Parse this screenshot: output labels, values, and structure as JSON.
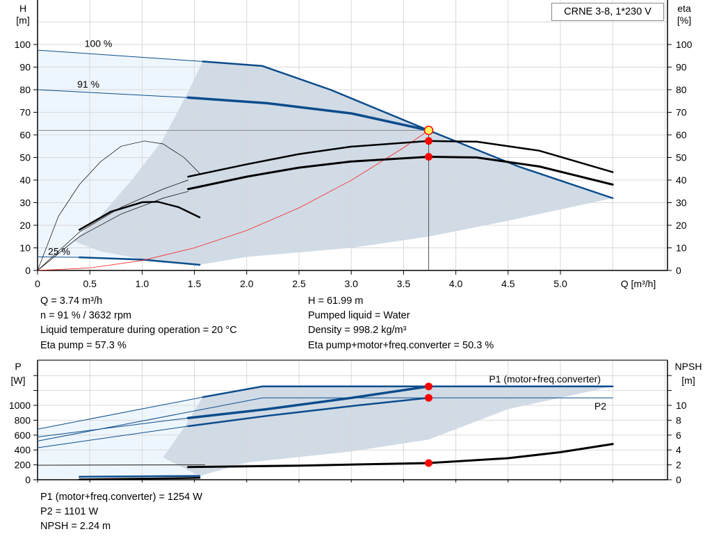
{
  "legend_box": "CRNE 3-8, 1*230 V",
  "chart_data": [
    {
      "type": "line",
      "ylabel": "H",
      "yunit": "[m]",
      "y2label": "eta",
      "y2unit": "[%]",
      "xlabel": "Q [m³/h]",
      "xlim": [
        0,
        6
      ],
      "ylim": [
        0,
        120
      ],
      "xticks": [
        "0",
        "0.5",
        "1.0",
        "1.5",
        "2.0",
        "2.5",
        "3.0",
        "3.5",
        "4.0",
        "4.5",
        "5.0"
      ],
      "yticks": [
        0,
        10,
        20,
        30,
        40,
        50,
        60,
        70,
        80,
        90,
        100
      ],
      "grid": true,
      "speed_labels": [
        {
          "text": "100 %",
          "x": 0.45,
          "y": 99
        },
        {
          "text": "91 %",
          "x": 0.38,
          "y": 81
        },
        {
          "text": "25 %",
          "x": 0.1,
          "y": 7
        }
      ],
      "series": [
        {
          "role": "head-100-thin",
          "color": "#0b4c8c",
          "width": 1,
          "points": [
            [
              0,
              97.5
            ],
            [
              1.58,
              92.5
            ]
          ]
        },
        {
          "role": "head-100",
          "color": "#0b4c8c",
          "width": 2.5,
          "points": [
            [
              1.58,
              92.5
            ],
            [
              2.15,
              90.5
            ],
            [
              2.8,
              80
            ],
            [
              3.74,
              62
            ],
            [
              4.6,
              46
            ],
            [
              5.5,
              32
            ]
          ]
        },
        {
          "role": "head-91-thin",
          "color": "#0b4c8c",
          "width": 1,
          "points": [
            [
              0,
              80
            ],
            [
              1.44,
              76.5
            ]
          ]
        },
        {
          "role": "head-91",
          "color": "#0b4c8c",
          "width": 3.5,
          "points": [
            [
              1.44,
              76.5
            ],
            [
              2.2,
              74
            ],
            [
              3.0,
              69.5
            ],
            [
              3.74,
              62
            ]
          ]
        },
        {
          "role": "head-25-thin",
          "color": "#0b4c8c",
          "width": 1,
          "points": [
            [
              0,
              6
            ],
            [
              0.4,
              5.8
            ]
          ]
        },
        {
          "role": "head-25",
          "color": "#0b4c8c",
          "width": 2.5,
          "points": [
            [
              0.4,
              5.8
            ],
            [
              1.0,
              4.8
            ],
            [
              1.55,
              2.5
            ]
          ]
        },
        {
          "role": "system-curve",
          "color": "#ff2020",
          "width": 0.8,
          "points": [
            [
              0,
              0
            ],
            [
              0.5,
              1.1
            ],
            [
              1.0,
              4.4
            ],
            [
              1.5,
              10
            ],
            [
              2.0,
              17.7
            ],
            [
              2.5,
              27.7
            ],
            [
              3.0,
              39.9
            ],
            [
              3.5,
              54.3
            ],
            [
              3.74,
              62
            ]
          ]
        },
        {
          "role": "eta-100-thin",
          "color": "#000",
          "width": 0.7,
          "points": [
            [
              0,
              0
            ],
            [
              0.2,
              24
            ],
            [
              0.4,
              38
            ],
            [
              0.6,
              48
            ],
            [
              0.8,
              55
            ],
            [
              1.02,
              57.3
            ],
            [
              1.2,
              56
            ],
            [
              1.4,
              50
            ],
            [
              1.55,
              43
            ]
          ]
        },
        {
          "role": "eta-25",
          "color": "#000",
          "width": 2.5,
          "points": [
            [
              0.4,
              18
            ],
            [
              0.7,
              26
            ],
            [
              1.0,
              30.2
            ],
            [
              1.15,
              30.4
            ],
            [
              1.35,
              28
            ],
            [
              1.55,
              23.5
            ]
          ]
        },
        {
          "role": "eta-pump-thin",
          "color": "#000",
          "width": 0.7,
          "points": [
            [
              0,
              0
            ],
            [
              0.4,
              17
            ],
            [
              0.8,
              28
            ],
            [
              1.2,
              36
            ],
            [
              1.44,
              40
            ]
          ]
        },
        {
          "role": "eta-pump",
          "color": "#000",
          "width": 2.5,
          "points": [
            [
              1.44,
              41.5
            ],
            [
              2.0,
              47
            ],
            [
              2.5,
              51.5
            ],
            [
              3.0,
              54.8
            ],
            [
              3.74,
              57.3
            ],
            [
              4.2,
              57
            ],
            [
              4.8,
              53
            ],
            [
              5.5,
              43.5
            ]
          ]
        },
        {
          "role": "eta-total-thin",
          "color": "#000",
          "width": 0.7,
          "points": [
            [
              0,
              0
            ],
            [
              0.4,
              15
            ],
            [
              0.8,
              25
            ],
            [
              1.2,
              32
            ],
            [
              1.44,
              35
            ]
          ]
        },
        {
          "role": "eta-total",
          "color": "#000",
          "width": 3,
          "points": [
            [
              1.44,
              36
            ],
            [
              2.0,
              41.5
            ],
            [
              2.5,
              45.5
            ],
            [
              3.0,
              48.2
            ],
            [
              3.74,
              50.3
            ],
            [
              4.2,
              50
            ],
            [
              4.8,
              46
            ],
            [
              5.5,
              38
            ]
          ]
        }
      ],
      "operating_point": {
        "Q": 3.74,
        "H": 61.99,
        "eta_pump": 57.3,
        "eta_total": 50.3
      }
    },
    {
      "type": "line",
      "ylabel": "P",
      "yunit": "[W]",
      "y2label": "NPSH",
      "y2unit": "[m]",
      "xlim": [
        0,
        6
      ],
      "ylim": [
        0,
        1600
      ],
      "y2lim": [
        0,
        16
      ],
      "yticks": [
        0,
        200,
        400,
        600,
        800,
        1000
      ],
      "y2ticks": [
        0,
        2,
        4,
        6,
        8,
        10
      ],
      "grid": true,
      "series_labels": [
        {
          "text": "P1 (motor+freq.converter)"
        },
        {
          "text": "P2"
        }
      ],
      "series": [
        {
          "role": "p1-100-thin",
          "color": "#0b4c8c",
          "width": 1,
          "points": [
            [
              0,
              680
            ],
            [
              1.58,
              1110
            ]
          ]
        },
        {
          "role": "p1-100",
          "color": "#0b4c8c",
          "width": 2.5,
          "points": [
            [
              1.58,
              1110
            ],
            [
              2.15,
              1254
            ],
            [
              5.5,
              1254
            ]
          ]
        },
        {
          "role": "p1-91-thin",
          "color": "#0b4c8c",
          "width": 1,
          "points": [
            [
              0,
              575
            ],
            [
              1.44,
              830
            ]
          ]
        },
        {
          "role": "p1-91",
          "color": "#0b4c8c",
          "width": 3.5,
          "points": [
            [
              1.44,
              830
            ],
            [
              2.2,
              950
            ],
            [
              3.0,
              1100
            ],
            [
              3.74,
              1254
            ]
          ]
        },
        {
          "role": "p2-100-thin",
          "color": "#0b4c8c",
          "width": 1,
          "points": [
            [
              0,
              520
            ],
            [
              2.15,
              1100
            ],
            [
              5.5,
              1100
            ]
          ]
        },
        {
          "role": "p2-91-thin",
          "color": "#0b4c8c",
          "width": 1,
          "points": [
            [
              0,
              430
            ],
            [
              1.44,
              720
            ]
          ]
        },
        {
          "role": "p2-91",
          "color": "#0b4c8c",
          "width": 2.5,
          "points": [
            [
              1.44,
              720
            ],
            [
              2.2,
              860
            ],
            [
              3.0,
              990
            ],
            [
              3.74,
              1101
            ]
          ]
        },
        {
          "role": "p-25",
          "color": "#0b4c8c",
          "width": 2.5,
          "points": [
            [
              0.4,
              40
            ],
            [
              1.55,
              50
            ]
          ]
        },
        {
          "role": "npsh",
          "color": "#000",
          "width": 3,
          "points": [
            [
              1.44,
              1.7
            ],
            [
              2.5,
              1.9
            ],
            [
              3.74,
              2.24
            ],
            [
              4.5,
              2.9
            ],
            [
              5.0,
              3.7
            ],
            [
              5.5,
              4.8
            ]
          ]
        },
        {
          "role": "npsh-thin",
          "color": "#000",
          "width": 0.8,
          "points": [
            [
              0,
              1.95
            ],
            [
              1.6,
              2.0
            ]
          ]
        },
        {
          "role": "npsh-25",
          "color": "#000",
          "width": 2.5,
          "points": [
            [
              0.4,
              0.05
            ],
            [
              1.55,
              0.25
            ]
          ]
        }
      ],
      "operating_point": {
        "P1": 1254,
        "P2": 1101,
        "NPSH": 2.24
      }
    }
  ],
  "results": {
    "left": [
      "Q = 3.74 m³/h",
      "n = 91 % / 3632 rpm",
      "Liquid temperature during operation = 20 °C",
      "Eta pump = 57.3 %"
    ],
    "right": [
      "H = 61.99 m",
      "Pumped liquid = Water",
      "Density = 998.2 kg/m³",
      "Eta pump+motor+freq.converter = 50.3 %"
    ],
    "bottom": [
      "P1 (motor+freq.converter) = 1254 W",
      "P2 = 1101 W",
      "NPSH = 2.24 m"
    ]
  },
  "colors": {
    "curve": "#0b4c8c",
    "shade_dark": "#d0dbe6",
    "shade_light": "#eef6fd",
    "point": "#ff0000",
    "op_fill": "#ffff60"
  }
}
